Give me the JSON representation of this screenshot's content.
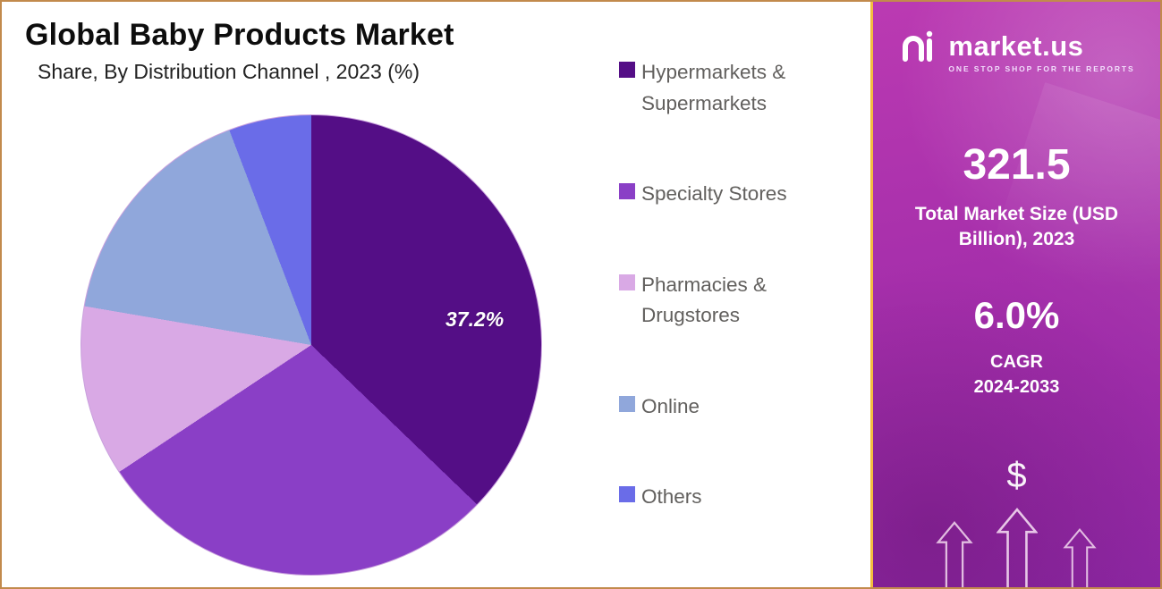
{
  "chart": {
    "title": "Global Baby Products Market",
    "subtitle": "Share, By Distribution Channel , 2023 (%)",
    "data_label": "37.2%"
  },
  "chart_data": {
    "type": "pie",
    "title": "Global Baby Products Market Share, By Distribution Channel, 2023 (%)",
    "categories": [
      "Hypermarkets & Supermarkets",
      "Specialty Stores",
      "Pharmacies & Drugstores",
      "Online",
      "Others"
    ],
    "values": [
      37.2,
      28.5,
      12.0,
      16.5,
      5.8
    ],
    "colors": [
      "#540e86",
      "#8a3fc6",
      "#d9a9e5",
      "#90a7db",
      "#6a6ce8"
    ],
    "start_angle_deg": 0,
    "direction": "clockwise",
    "data_labels": [
      {
        "category": "Hypermarkets & Supermarkets",
        "label": "37.2%"
      }
    ],
    "legend_position": "right"
  },
  "sidebar": {
    "brand_name": "market.us",
    "brand_tagline": "ONE STOP SHOP FOR THE REPORTS",
    "market_size_value": "321.5",
    "market_size_label": "Total Market Size (USD Billion), 2023",
    "cagr_value": "6.0%",
    "cagr_line1": "CAGR",
    "cagr_line2": "2024-2033",
    "dollar_sign": "$"
  }
}
